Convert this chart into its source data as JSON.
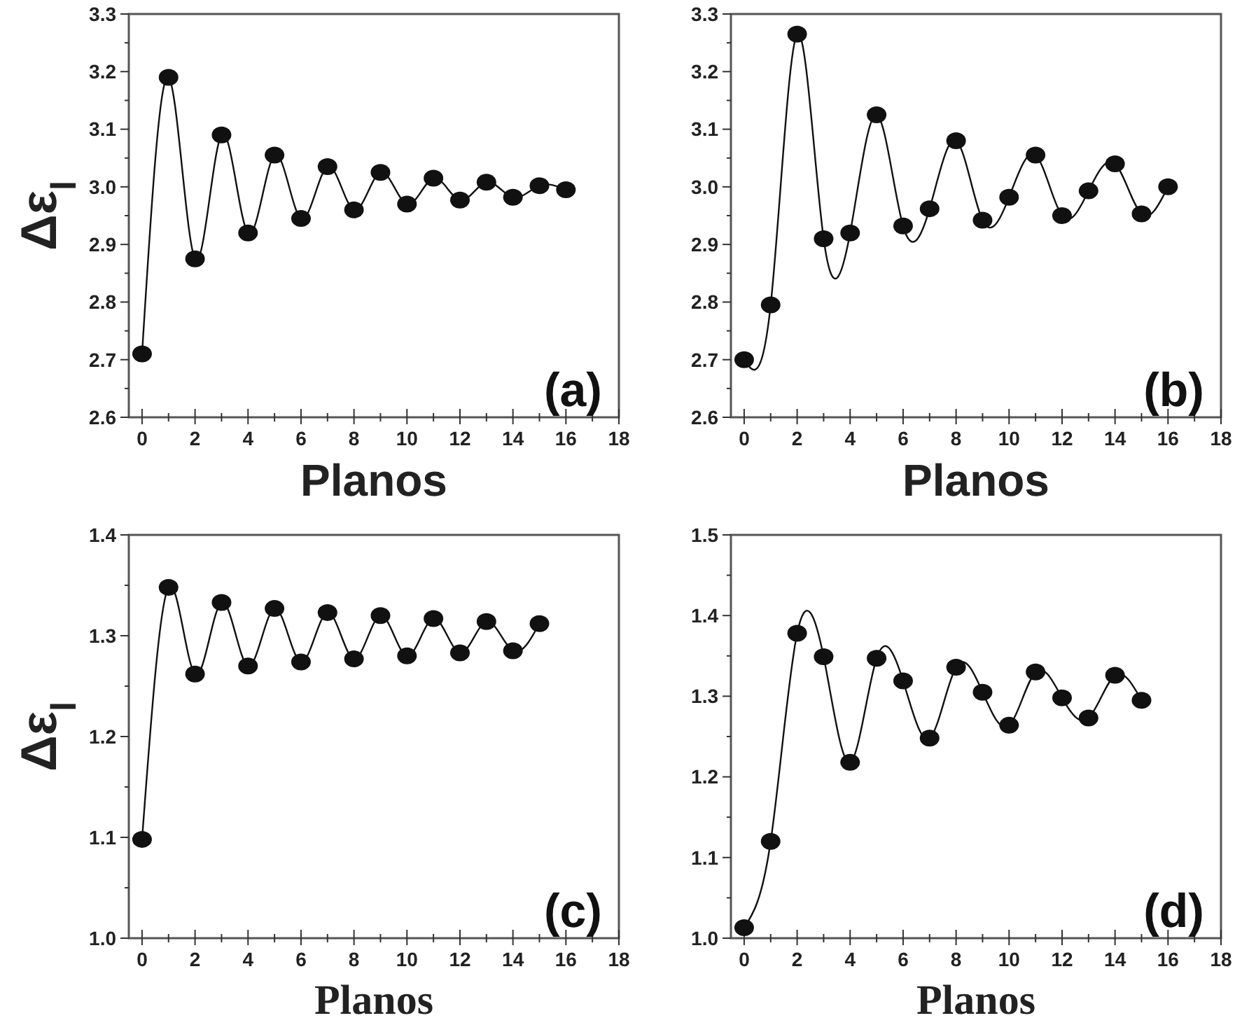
{
  "chart_data": [
    {
      "type": "line",
      "xlabel": "Planos",
      "ylabel": "Δε$_{l}$",
      "annotations": [
        "(a)"
      ],
      "marker": "circle",
      "grid": false,
      "xlim": [
        -0.5,
        18
      ],
      "ylim": [
        2.6,
        3.3
      ],
      "xticks": [
        0,
        {
          "value": 1,
          "label": null
        },
        2,
        {
          "value": 3,
          "label": null
        },
        4,
        {
          "value": 5,
          "label": null
        },
        6,
        {
          "value": 7,
          "label": null
        },
        8,
        {
          "value": 9,
          "label": null
        },
        10,
        {
          "value": 11,
          "label": null
        },
        12,
        {
          "value": 13,
          "label": null
        },
        14,
        {
          "value": 15,
          "label": null
        },
        16,
        {
          "value": 17,
          "label": null
        },
        18
      ],
      "yticks": [
        {
          "value": 2.6,
          "label": "2.6"
        },
        {
          "value": 2.65,
          "label": null
        },
        {
          "value": 2.7,
          "label": "2.7"
        },
        {
          "value": 2.75,
          "label": null
        },
        {
          "value": 2.8,
          "label": "2.8"
        },
        {
          "value": 2.85,
          "label": null
        },
        {
          "value": 2.9,
          "label": "2.9"
        },
        {
          "value": 2.95,
          "label": null
        },
        {
          "value": 3.0,
          "label": "3.0"
        },
        {
          "value": 3.05,
          "label": null
        },
        {
          "value": 3.1,
          "label": "3.1"
        },
        {
          "value": 3.15,
          "label": null
        },
        {
          "value": 3.2,
          "label": "3.2"
        },
        {
          "value": 3.25,
          "label": null
        },
        {
          "value": 3.3,
          "label": "3.3"
        }
      ],
      "x": [
        0,
        1,
        2,
        3,
        4,
        5,
        6,
        7,
        8,
        9,
        10,
        11,
        12,
        13,
        14,
        15,
        16
      ],
      "series": [
        {
          "color": "#111111",
          "values": [
            2.71,
            3.19,
            2.875,
            3.09,
            2.92,
            3.055,
            2.945,
            3.035,
            2.96,
            3.025,
            2.97,
            3.015,
            2.977,
            3.008,
            2.982,
            3.002,
            2.995
          ]
        }
      ]
    },
    {
      "type": "line",
      "xlabel": "Planos",
      "annotations": [
        "(b)"
      ],
      "marker": "circle",
      "grid": false,
      "xlim": [
        -0.5,
        18
      ],
      "ylim": [
        2.6,
        3.3
      ],
      "xticks": [
        0,
        {
          "value": 1,
          "label": null
        },
        2,
        {
          "value": 3,
          "label": null
        },
        4,
        {
          "value": 5,
          "label": null
        },
        6,
        {
          "value": 7,
          "label": null
        },
        8,
        {
          "value": 9,
          "label": null
        },
        10,
        {
          "value": 11,
          "label": null
        },
        12,
        {
          "value": 13,
          "label": null
        },
        14,
        {
          "value": 15,
          "label": null
        },
        16,
        {
          "value": 17,
          "label": null
        },
        18
      ],
      "yticks": [
        {
          "value": 2.6,
          "label": "2.6"
        },
        {
          "value": 2.65,
          "label": null
        },
        {
          "value": 2.7,
          "label": "2.7"
        },
        {
          "value": 2.75,
          "label": null
        },
        {
          "value": 2.8,
          "label": "2.8"
        },
        {
          "value": 2.85,
          "label": null
        },
        {
          "value": 2.9,
          "label": "2.9"
        },
        {
          "value": 2.95,
          "label": null
        },
        {
          "value": 3.0,
          "label": "3.0"
        },
        {
          "value": 3.05,
          "label": null
        },
        {
          "value": 3.1,
          "label": "3.1"
        },
        {
          "value": 3.15,
          "label": null
        },
        {
          "value": 3.2,
          "label": "3.2"
        },
        {
          "value": 3.25,
          "label": null
        },
        {
          "value": 3.3,
          "label": "3.3"
        }
      ],
      "x": [
        0,
        1,
        2,
        3,
        4,
        5,
        6,
        7,
        8,
        9,
        10,
        11,
        12,
        13,
        14,
        15,
        16
      ],
      "series": [
        {
          "color": "#111111",
          "values": [
            2.7,
            2.795,
            3.265,
            2.91,
            2.92,
            3.125,
            2.932,
            2.962,
            3.08,
            2.942,
            2.982,
            3.055,
            2.95,
            2.993,
            3.04,
            2.953,
            3.0
          ]
        }
      ]
    },
    {
      "type": "line",
      "xlabel": "Planos",
      "ylabel": "Δε$_{l}$",
      "annotations": [
        "(c)"
      ],
      "marker": "circle",
      "grid": false,
      "xlim": [
        -0.5,
        18
      ],
      "ylim": [
        1.0,
        1.4
      ],
      "xticks": [
        0,
        {
          "value": 1,
          "label": null
        },
        2,
        {
          "value": 3,
          "label": null
        },
        4,
        {
          "value": 5,
          "label": null
        },
        6,
        {
          "value": 7,
          "label": null
        },
        8,
        {
          "value": 9,
          "label": null
        },
        10,
        {
          "value": 11,
          "label": null
        },
        12,
        {
          "value": 13,
          "label": null
        },
        14,
        {
          "value": 15,
          "label": null
        },
        16,
        {
          "value": 17,
          "label": null
        },
        18
      ],
      "yticks": [
        {
          "value": 1.0,
          "label": "1.0"
        },
        {
          "value": 1.05,
          "label": null
        },
        {
          "value": 1.1,
          "label": "1.1"
        },
        {
          "value": 1.15,
          "label": null
        },
        {
          "value": 1.2,
          "label": "1.2"
        },
        {
          "value": 1.25,
          "label": null
        },
        {
          "value": 1.3,
          "label": "1.3"
        },
        {
          "value": 1.35,
          "label": null
        },
        {
          "value": 1.4,
          "label": "1.4"
        }
      ],
      "x": [
        0,
        1,
        2,
        3,
        4,
        5,
        6,
        7,
        8,
        9,
        10,
        11,
        12,
        13,
        14,
        15
      ],
      "series": [
        {
          "color": "#111111",
          "values": [
            1.098,
            1.348,
            1.262,
            1.333,
            1.27,
            1.327,
            1.274,
            1.323,
            1.277,
            1.32,
            1.28,
            1.317,
            1.283,
            1.314,
            1.285,
            1.312
          ]
        }
      ]
    },
    {
      "type": "line",
      "xlabel": "Planos",
      "annotations": [
        "(d)"
      ],
      "marker": "circle",
      "grid": false,
      "xlim": [
        -0.5,
        18
      ],
      "ylim": [
        1.0,
        1.5
      ],
      "xticks": [
        0,
        {
          "value": 1,
          "label": null
        },
        2,
        {
          "value": 3,
          "label": null
        },
        4,
        {
          "value": 5,
          "label": null
        },
        6,
        {
          "value": 7,
          "label": null
        },
        8,
        {
          "value": 9,
          "label": null
        },
        10,
        {
          "value": 11,
          "label": null
        },
        12,
        {
          "value": 13,
          "label": null
        },
        14,
        {
          "value": 15,
          "label": null
        },
        16,
        {
          "value": 17,
          "label": null
        },
        18
      ],
      "yticks": [
        {
          "value": 1.0,
          "label": "1.0"
        },
        {
          "value": 1.05,
          "label": null
        },
        {
          "value": 1.1,
          "label": "1.1"
        },
        {
          "value": 1.15,
          "label": null
        },
        {
          "value": 1.2,
          "label": "1.2"
        },
        {
          "value": 1.25,
          "label": null
        },
        {
          "value": 1.3,
          "label": "1.3"
        },
        {
          "value": 1.35,
          "label": null
        },
        {
          "value": 1.4,
          "label": "1.4"
        },
        {
          "value": 1.45,
          "label": null
        },
        {
          "value": 1.5,
          "label": "1.5"
        }
      ],
      "x": [
        0,
        1,
        2,
        3,
        4,
        5,
        6,
        7,
        8,
        9,
        10,
        11,
        12,
        13,
        14,
        15
      ],
      "series": [
        {
          "color": "#111111",
          "values": [
            1.013,
            1.12,
            1.378,
            1.349,
            1.218,
            1.347,
            1.319,
            1.248,
            1.336,
            1.305,
            1.264,
            1.33,
            1.298,
            1.273,
            1.326,
            1.295
          ]
        }
      ]
    }
  ]
}
